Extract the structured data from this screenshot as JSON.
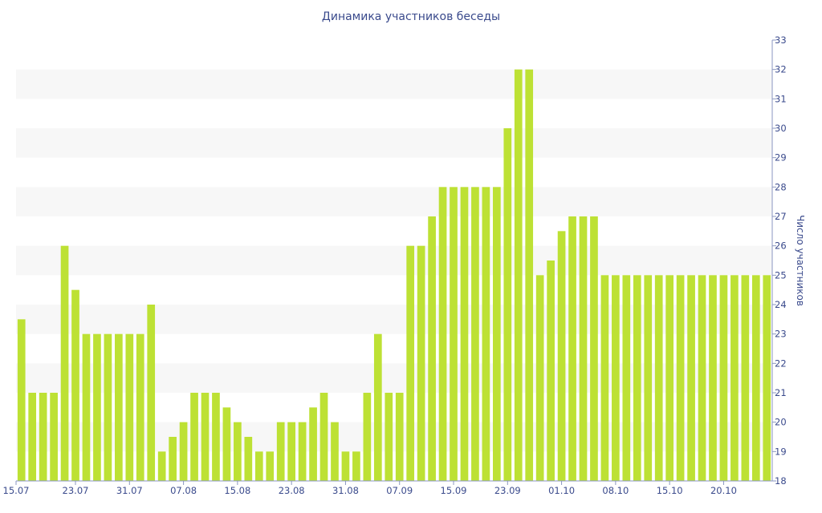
{
  "chart_data": {
    "type": "bar",
    "title": "Динамика участников беседы",
    "xlabel": "",
    "ylabel": "Число участников",
    "y_axis_side": "right",
    "ylim": [
      18,
      33
    ],
    "yticks": [
      18,
      19,
      20,
      21,
      22,
      23,
      24,
      25,
      26,
      27,
      28,
      29,
      30,
      31,
      32,
      33
    ],
    "grid": "alternating horizontal bands",
    "legend": "none",
    "bar_color": "#bde134",
    "band_color": "#f7f7f7",
    "text_color": "#3a4a8c",
    "x_tick_labels": [
      {
        "index": 0,
        "label": "15.07"
      },
      {
        "index": 5,
        "label": "23.07"
      },
      {
        "index": 10,
        "label": "31.07"
      },
      {
        "index": 15,
        "label": "07.08"
      },
      {
        "index": 20,
        "label": "15.08"
      },
      {
        "index": 25,
        "label": "23.08"
      },
      {
        "index": 30,
        "label": "31.08"
      },
      {
        "index": 35,
        "label": "07.09"
      },
      {
        "index": 40,
        "label": "15.09"
      },
      {
        "index": 45,
        "label": "23.09"
      },
      {
        "index": 50,
        "label": "01.10"
      },
      {
        "index": 55,
        "label": "08.10"
      },
      {
        "index": 60,
        "label": "15.10"
      },
      {
        "index": 65,
        "label": "20.10"
      }
    ],
    "values": [
      23.5,
      21,
      21,
      21,
      26,
      24.5,
      23,
      23,
      23,
      23,
      23,
      23,
      24,
      19,
      19.5,
      20,
      21,
      21,
      21,
      20.5,
      20,
      19.5,
      19,
      19,
      20,
      20,
      20,
      20.5,
      21,
      20,
      19,
      19,
      21,
      23,
      21,
      21,
      26,
      26,
      27,
      28,
      28,
      28,
      28,
      28,
      28,
      30,
      32,
      32,
      25,
      25.5,
      26.5,
      27,
      27,
      27,
      25,
      25,
      25,
      25,
      25,
      25,
      25,
      25,
      25,
      25,
      25,
      25,
      25,
      25,
      25,
      25
    ]
  }
}
